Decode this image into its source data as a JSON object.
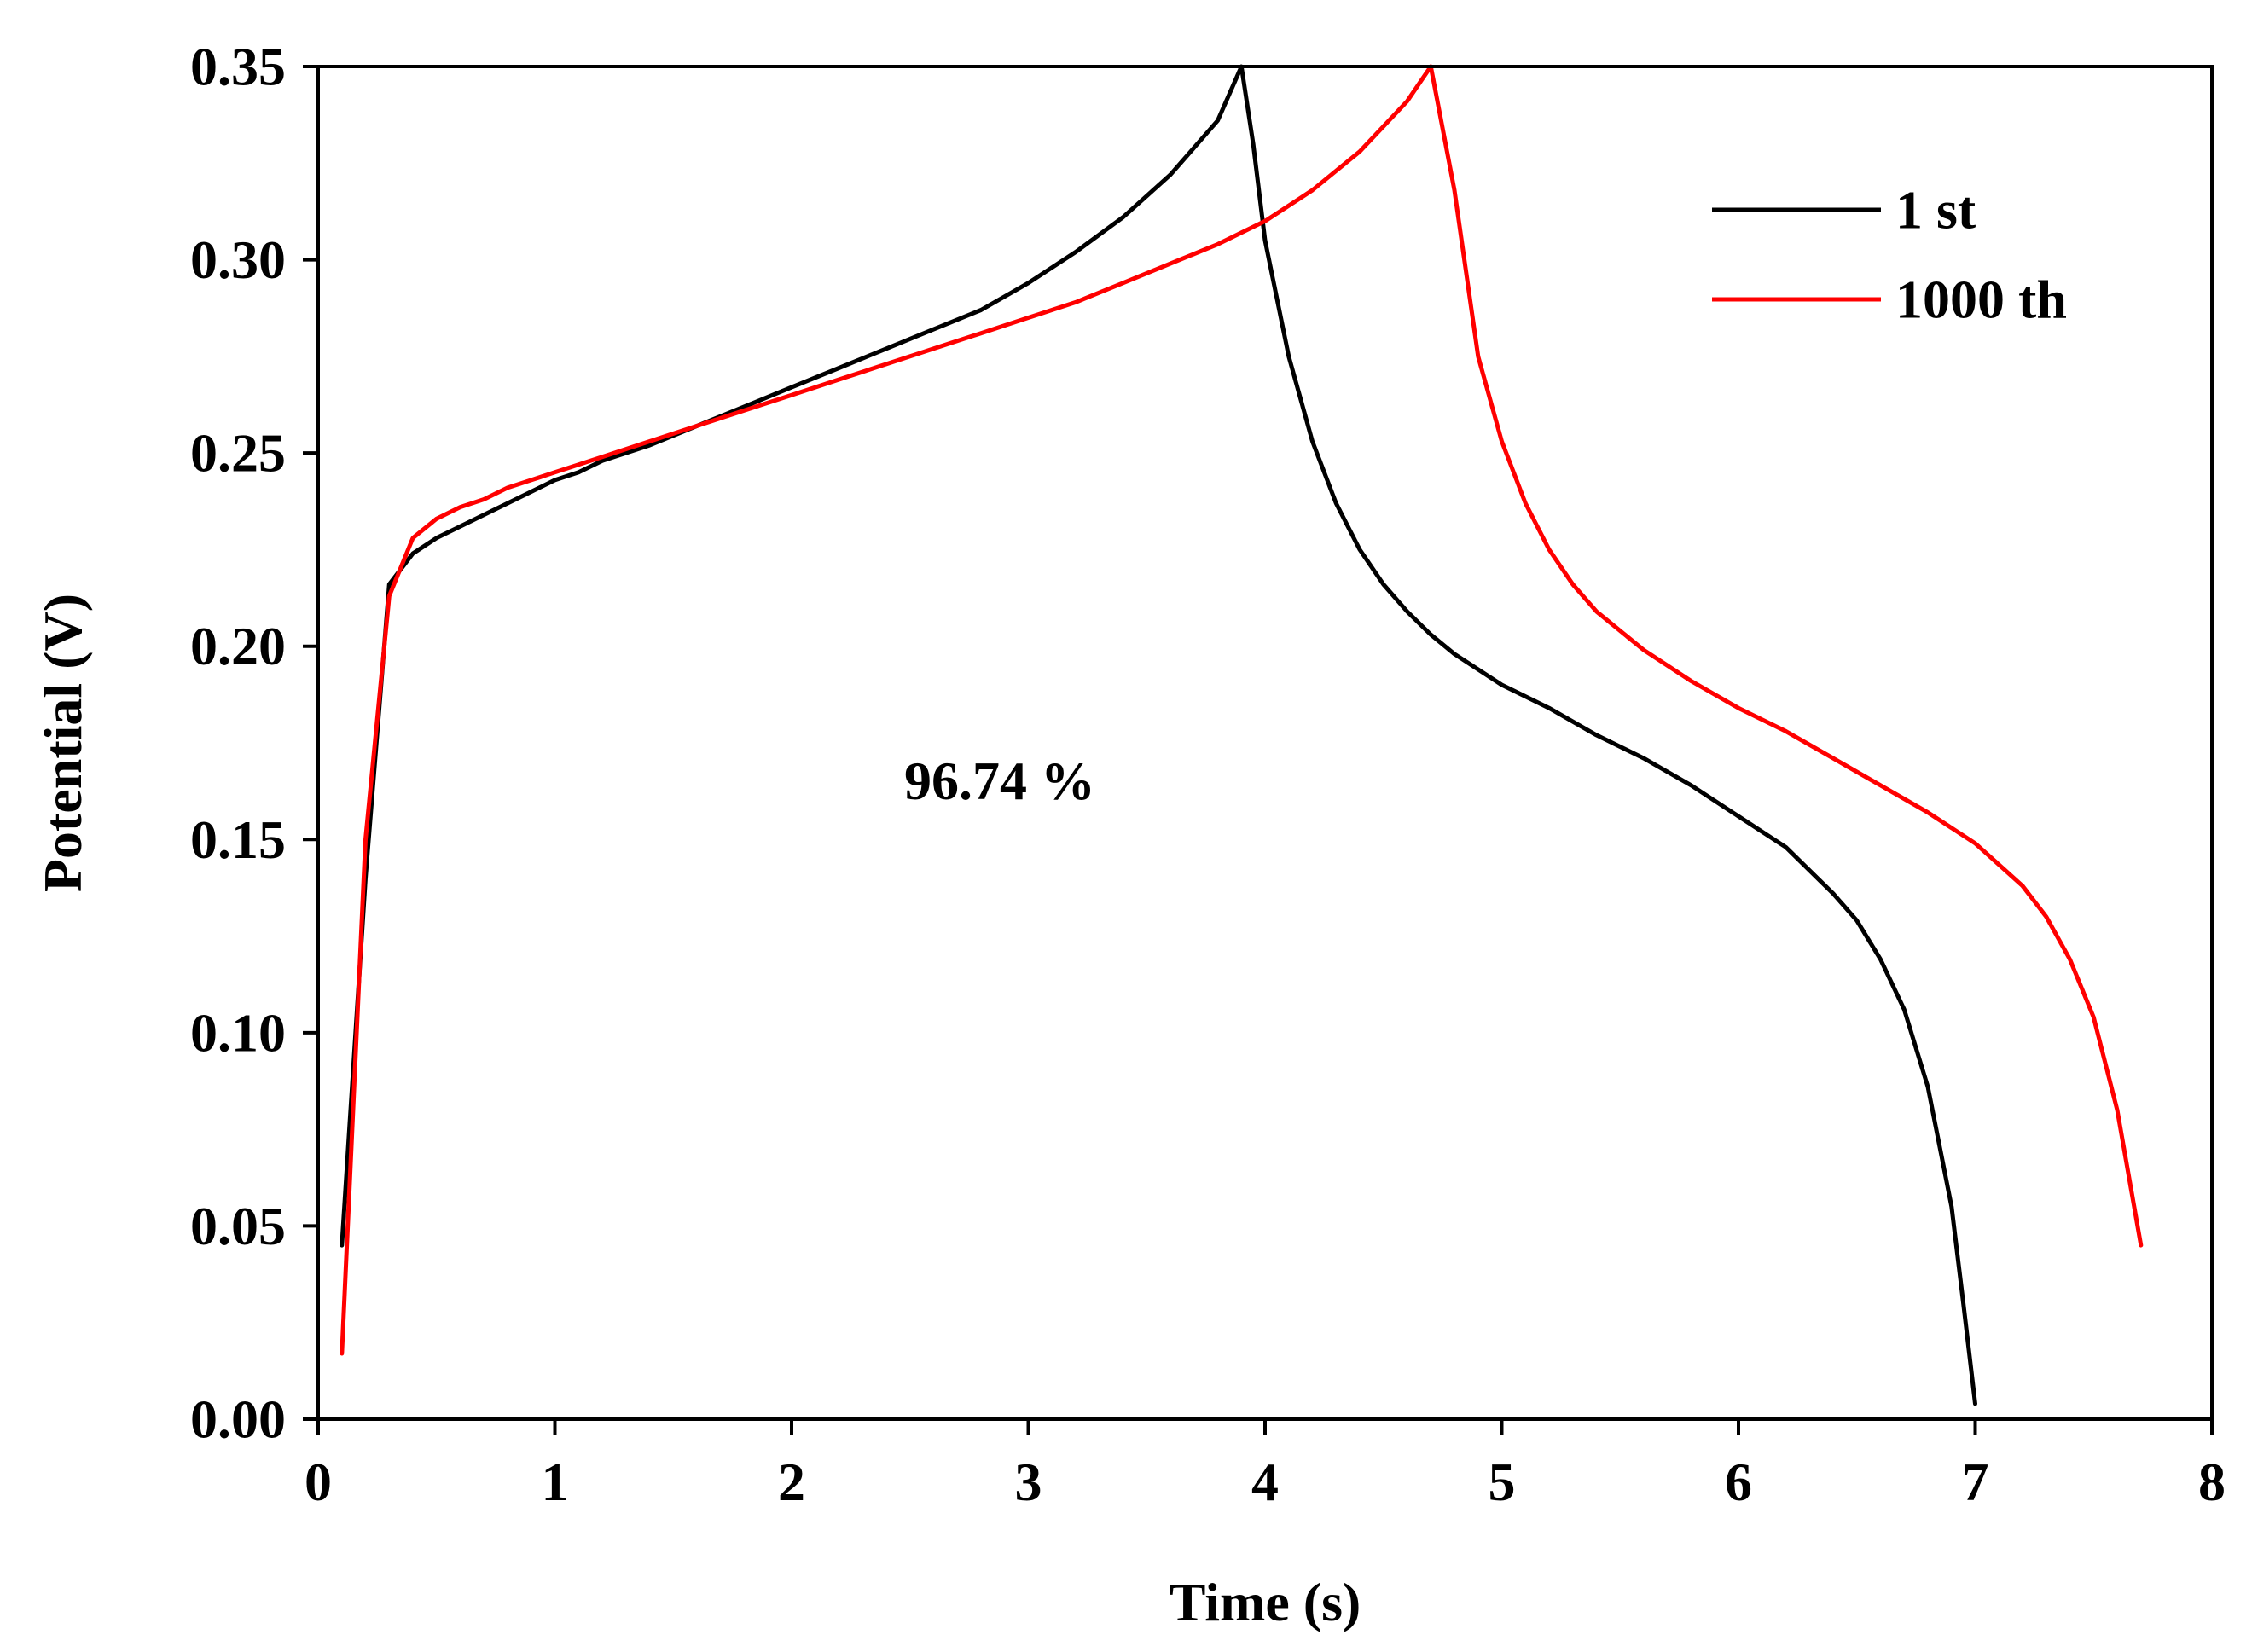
{
  "chart_data": {
    "type": "line",
    "title": "",
    "xlabel": "Time (s)",
    "ylabel": "Potential (V)",
    "xlim": [
      0,
      8
    ],
    "ylim": [
      0,
      0.35
    ],
    "xticks": [
      0,
      1,
      2,
      3,
      4,
      5,
      6,
      7,
      8
    ],
    "yticks": [
      0.0,
      0.05,
      0.1,
      0.15,
      0.2,
      0.25,
      0.3,
      0.35
    ],
    "xtick_labels": [
      "0",
      "1",
      "2",
      "3",
      "4",
      "5",
      "6",
      "7",
      "8"
    ],
    "ytick_labels": [
      "0.00",
      "0.05",
      "0.10",
      "0.15",
      "0.20",
      "0.25",
      "0.30",
      "0.35"
    ],
    "grid": false,
    "legend_position": "top-right",
    "annotation": "96.74 %",
    "series": [
      {
        "name": "1 st",
        "color": "#000000",
        "points": [
          [
            0.1,
            0.045
          ],
          [
            0.2,
            0.14
          ],
          [
            0.3,
            0.216
          ],
          [
            0.4,
            0.224
          ],
          [
            0.5,
            0.228
          ],
          [
            0.6,
            0.231
          ],
          [
            0.7,
            0.234
          ],
          [
            0.8,
            0.237
          ],
          [
            0.9,
            0.24
          ],
          [
            1.0,
            0.243
          ],
          [
            1.1,
            0.245
          ],
          [
            1.2,
            0.248
          ],
          [
            1.4,
            0.252
          ],
          [
            1.6,
            0.257
          ],
          [
            1.8,
            0.262
          ],
          [
            2.0,
            0.267
          ],
          [
            2.2,
            0.272
          ],
          [
            2.4,
            0.277
          ],
          [
            2.6,
            0.282
          ],
          [
            2.8,
            0.287
          ],
          [
            3.0,
            0.294
          ],
          [
            3.2,
            0.302
          ],
          [
            3.4,
            0.311
          ],
          [
            3.6,
            0.322
          ],
          [
            3.8,
            0.336
          ],
          [
            3.9,
            0.35
          ],
          [
            3.95,
            0.33
          ],
          [
            4.0,
            0.305
          ],
          [
            4.1,
            0.275
          ],
          [
            4.2,
            0.253
          ],
          [
            4.3,
            0.237
          ],
          [
            4.4,
            0.225
          ],
          [
            4.5,
            0.216
          ],
          [
            4.6,
            0.209
          ],
          [
            4.7,
            0.203
          ],
          [
            4.8,
            0.198
          ],
          [
            5.0,
            0.19
          ],
          [
            5.2,
            0.184
          ],
          [
            5.4,
            0.177
          ],
          [
            5.6,
            0.171
          ],
          [
            5.8,
            0.164
          ],
          [
            6.0,
            0.156
          ],
          [
            6.2,
            0.148
          ],
          [
            6.4,
            0.136
          ],
          [
            6.5,
            0.129
          ],
          [
            6.6,
            0.119
          ],
          [
            6.7,
            0.106
          ],
          [
            6.8,
            0.086
          ],
          [
            6.9,
            0.055
          ],
          [
            6.95,
            0.03
          ],
          [
            7.0,
            0.004
          ]
        ]
      },
      {
        "name": "1000 th",
        "color": "#ff0000",
        "points": [
          [
            0.1,
            0.017
          ],
          [
            0.2,
            0.15
          ],
          [
            0.3,
            0.213
          ],
          [
            0.4,
            0.228
          ],
          [
            0.5,
            0.233
          ],
          [
            0.6,
            0.236
          ],
          [
            0.7,
            0.238
          ],
          [
            0.8,
            0.241
          ],
          [
            0.9,
            0.243
          ],
          [
            1.0,
            0.245
          ],
          [
            1.2,
            0.249
          ],
          [
            1.4,
            0.253
          ],
          [
            1.6,
            0.257
          ],
          [
            1.8,
            0.261
          ],
          [
            2.0,
            0.265
          ],
          [
            2.2,
            0.269
          ],
          [
            2.4,
            0.273
          ],
          [
            2.6,
            0.277
          ],
          [
            2.8,
            0.281
          ],
          [
            3.0,
            0.285
          ],
          [
            3.2,
            0.289
          ],
          [
            3.4,
            0.294
          ],
          [
            3.6,
            0.299
          ],
          [
            3.8,
            0.304
          ],
          [
            4.0,
            0.31
          ],
          [
            4.2,
            0.318
          ],
          [
            4.4,
            0.328
          ],
          [
            4.6,
            0.341
          ],
          [
            4.7,
            0.35
          ],
          [
            4.8,
            0.318
          ],
          [
            4.9,
            0.275
          ],
          [
            5.0,
            0.253
          ],
          [
            5.1,
            0.237
          ],
          [
            5.2,
            0.225
          ],
          [
            5.3,
            0.216
          ],
          [
            5.4,
            0.209
          ],
          [
            5.6,
            0.199
          ],
          [
            5.8,
            0.191
          ],
          [
            6.0,
            0.184
          ],
          [
            6.2,
            0.178
          ],
          [
            6.4,
            0.171
          ],
          [
            6.6,
            0.164
          ],
          [
            6.8,
            0.157
          ],
          [
            7.0,
            0.149
          ],
          [
            7.2,
            0.138
          ],
          [
            7.3,
            0.13
          ],
          [
            7.4,
            0.119
          ],
          [
            7.5,
            0.104
          ],
          [
            7.6,
            0.08
          ],
          [
            7.7,
            0.045
          ]
        ]
      }
    ]
  }
}
